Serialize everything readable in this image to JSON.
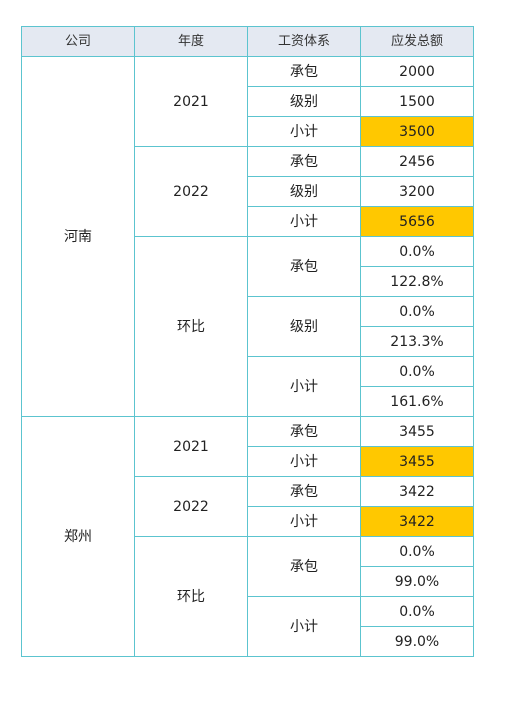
{
  "table": {
    "headers": [
      "公司",
      "年度",
      "工资体系",
      "应发总额"
    ],
    "highlight_color": "#ffc800",
    "header_bg": "#e4e9f2",
    "border_color": "#5cc4cf",
    "groups": [
      {
        "company": "河南",
        "years": [
          {
            "year": "2021",
            "rows": [
              {
                "type": "承包",
                "amount": "2000"
              },
              {
                "type": "级别",
                "amount": "1500"
              },
              {
                "type": "小计",
                "amount": "3500",
                "highlight": true
              }
            ]
          },
          {
            "year": "2022",
            "rows": [
              {
                "type": "承包",
                "amount": "2456"
              },
              {
                "type": "级别",
                "amount": "3200"
              },
              {
                "type": "小计",
                "amount": "5656",
                "highlight": true
              }
            ]
          },
          {
            "year": "环比",
            "ratio": true,
            "types": [
              {
                "type": "承包",
                "values": [
                  "0.0%",
                  "122.8%"
                ]
              },
              {
                "type": "级别",
                "values": [
                  "0.0%",
                  "213.3%"
                ]
              },
              {
                "type": "小计",
                "values": [
                  "0.0%",
                  "161.6%"
                ]
              }
            ]
          }
        ]
      },
      {
        "company": "郑州",
        "years": [
          {
            "year": "2021",
            "rows": [
              {
                "type": "承包",
                "amount": "3455"
              },
              {
                "type": "小计",
                "amount": "3455",
                "highlight": true
              }
            ]
          },
          {
            "year": "2022",
            "rows": [
              {
                "type": "承包",
                "amount": "3422"
              },
              {
                "type": "小计",
                "amount": "3422",
                "highlight": true
              }
            ]
          },
          {
            "year": "环比",
            "ratio": true,
            "types": [
              {
                "type": "承包",
                "values": [
                  "0.0%",
                  "99.0%"
                ]
              },
              {
                "type": "小计",
                "values": [
                  "0.0%",
                  "99.0%"
                ]
              }
            ]
          }
        ]
      }
    ]
  }
}
